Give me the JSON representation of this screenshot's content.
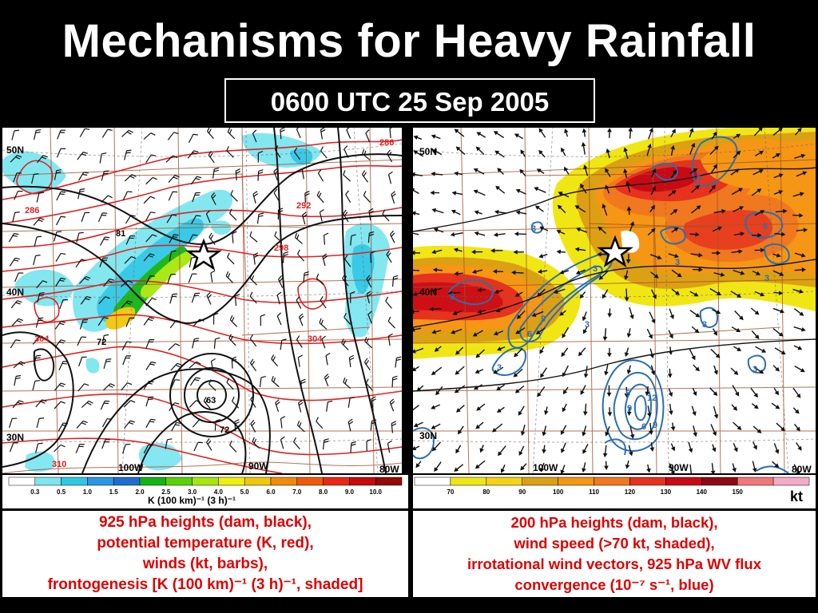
{
  "title": "Mechanisms for Heavy Rainfall",
  "datetime": "0600 UTC 25 Sep 2005",
  "left_panel": {
    "lat_labels": [
      "50N",
      "40N",
      "30N"
    ],
    "lon_labels": [
      "100W",
      "90W",
      "80W"
    ],
    "height_labels": [
      "81",
      "72",
      "63",
      "72"
    ],
    "theta_labels": [
      "286",
      "286",
      "292",
      "298",
      "304",
      "304",
      "310"
    ],
    "colorbar": {
      "ticks": [
        "0.3",
        "0.5",
        "1.0",
        "1.5",
        "2.0",
        "2.5",
        "3.0",
        "4.0",
        "5.0",
        "6.0",
        "7.0",
        "8.0",
        "9.0",
        "10.0"
      ],
      "colors": [
        "#ffffff",
        "#7de6f0",
        "#2ec8e6",
        "#2a96e6",
        "#1e6ed2",
        "#14b414",
        "#5ad20a",
        "#a8e60a",
        "#f0f00a",
        "#f0c80a",
        "#f08c0a",
        "#f05a0a",
        "#e62814",
        "#c80a0a",
        "#960a0a"
      ],
      "units": "K (100 km)⁻¹ (3 h)⁻¹"
    },
    "caption": [
      "925 hPa heights (dam, black),",
      "potential temperature (K, red),",
      "winds (kt, barbs),",
      "frontogenesis [K (100 km)⁻¹ (3 h)⁻¹, shaded]"
    ]
  },
  "right_panel": {
    "lat_labels": [
      "50N",
      "40N",
      "30N"
    ],
    "lon_labels": [
      "100W",
      "90W",
      "80W"
    ],
    "flux_labels": [
      "3",
      "3",
      "6",
      "9",
      "3",
      "3",
      "6",
      "6",
      "3",
      "3",
      "3",
      "3",
      "6",
      "9",
      "12",
      "6",
      "9",
      "3"
    ],
    "colorbar": {
      "ticks": [
        "70",
        "80",
        "90",
        "100",
        "110",
        "120",
        "130",
        "140",
        "150"
      ],
      "colors": [
        "#ffffff",
        "#f0e614",
        "#f5d214",
        "#dca014",
        "#f59614",
        "#f0781e",
        "#e6321e",
        "#c80a14",
        "#8c0a14",
        "#f07878",
        "#f5aac8"
      ],
      "units": "kt"
    },
    "caption": [
      "200 hPa heights (dam, black),",
      "wind speed (>70 kt, shaded),",
      "irrotational wind vectors, 925 hPa WV flux",
      "convergence (10⁻⁷ s⁻¹, blue)"
    ]
  }
}
